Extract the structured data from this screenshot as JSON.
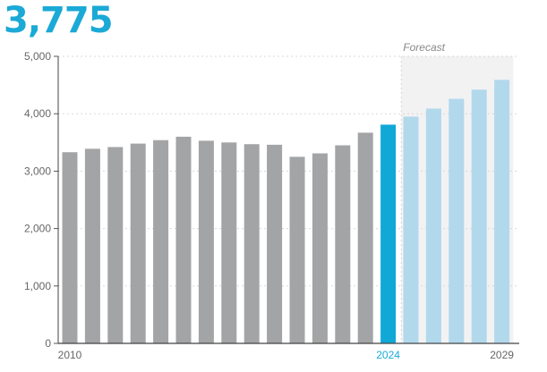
{
  "headline": {
    "value": "3,775"
  },
  "chart_data": {
    "type": "bar",
    "categories": [
      "2010",
      "2011",
      "2012",
      "2013",
      "2014",
      "2015",
      "2016",
      "2017",
      "2018",
      "2019",
      "2020",
      "2021",
      "2022",
      "2023",
      "2024",
      "2025",
      "2026",
      "2027",
      "2028",
      "2029"
    ],
    "values": [
      3330,
      3390,
      3420,
      3480,
      3540,
      3600,
      3530,
      3500,
      3470,
      3460,
      3250,
      3310,
      3450,
      3670,
      3810,
      3950,
      4090,
      4260,
      4420,
      4590
    ],
    "bar_kind": [
      "actual",
      "actual",
      "actual",
      "actual",
      "actual",
      "actual",
      "actual",
      "actual",
      "actual",
      "actual",
      "actual",
      "actual",
      "actual",
      "actual",
      "current",
      "forecast",
      "forecast",
      "forecast",
      "forecast",
      "forecast"
    ],
    "x_tick_labels": [
      {
        "category": "2010",
        "text": "2010",
        "kind": "actual"
      },
      {
        "category": "2024",
        "text": "2024",
        "kind": "current"
      },
      {
        "category": "2029",
        "text": "2029",
        "kind": "actual"
      }
    ],
    "y_ticks": [
      0,
      1000,
      2000,
      3000,
      4000,
      5000
    ],
    "y_tick_labels": [
      "0",
      "1,000",
      "2,000",
      "3,000",
      "4,000",
      "5,000"
    ],
    "ylim": [
      0,
      5000
    ],
    "forecast_region": {
      "from": "2025",
      "to": "2029",
      "label": "Forecast"
    },
    "grid": true,
    "title": "",
    "xlabel": "",
    "ylabel": "",
    "colors": {
      "actual": "#a3a4a6",
      "current": "#11a8d8",
      "forecast": "#b2d8ec",
      "forecast_bg": "#f2f2f3",
      "headline": "#1ba9d6",
      "current_tick": "#1ba9d6"
    }
  }
}
